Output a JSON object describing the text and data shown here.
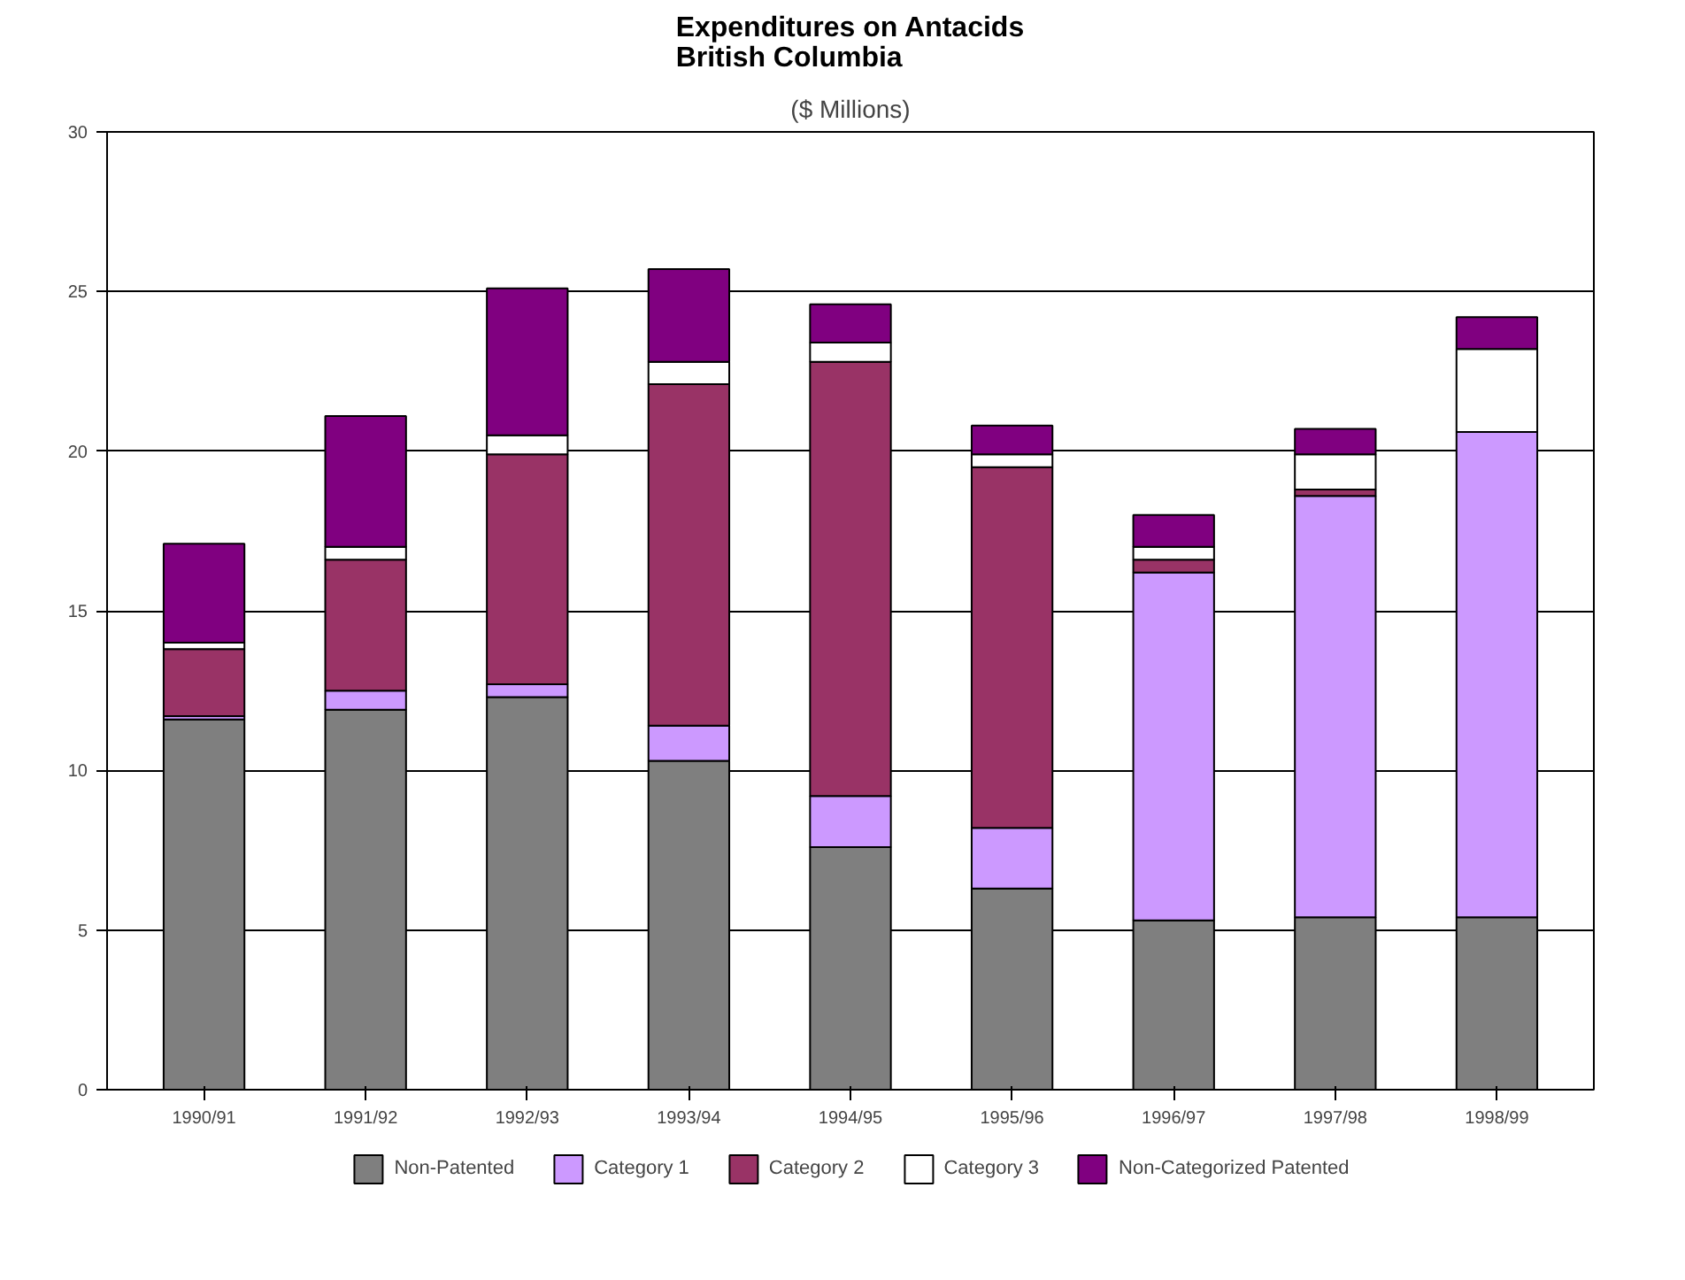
{
  "chart_data": {
    "type": "bar",
    "title": "Expenditures on Antacids\nBritish Columbia",
    "subtitle": "($ Millions)",
    "categories": [
      "1990/91",
      "1991/92",
      "1992/93",
      "1993/94",
      "1994/95",
      "1995/96",
      "1996/97",
      "1997/98",
      "1998/99"
    ],
    "stacked": true,
    "ylim": [
      0,
      30
    ],
    "yticks": [
      0,
      5,
      10,
      15,
      20,
      25,
      30
    ],
    "grid": "y",
    "legend": "bottom",
    "series": [
      {
        "name": "Non-Patented",
        "color": "#7f7f7f",
        "values": [
          11.6,
          11.9,
          12.3,
          10.3,
          7.6,
          6.3,
          5.3,
          5.4,
          5.4
        ]
      },
      {
        "name": "Category 1",
        "color": "#cc99ff",
        "values": [
          0.1,
          0.6,
          0.4,
          1.1,
          1.6,
          1.9,
          10.9,
          13.2,
          15.2
        ]
      },
      {
        "name": "Category 2",
        "color": "#993366",
        "values": [
          2.1,
          4.1,
          7.2,
          10.7,
          13.6,
          11.3,
          0.4,
          0.2,
          0
        ]
      },
      {
        "name": "Category 3",
        "color": "#ffffff",
        "values": [
          0.2,
          0.4,
          0.6,
          0.7,
          0.6,
          0.4,
          0.4,
          1.1,
          2.6
        ]
      },
      {
        "name": "Non-Categorized Patented",
        "color": "#800080",
        "values": [
          3.1,
          4.1,
          4.6,
          2.9,
          1.2,
          0.9,
          1.0,
          0.8,
          1.0
        ]
      }
    ]
  }
}
